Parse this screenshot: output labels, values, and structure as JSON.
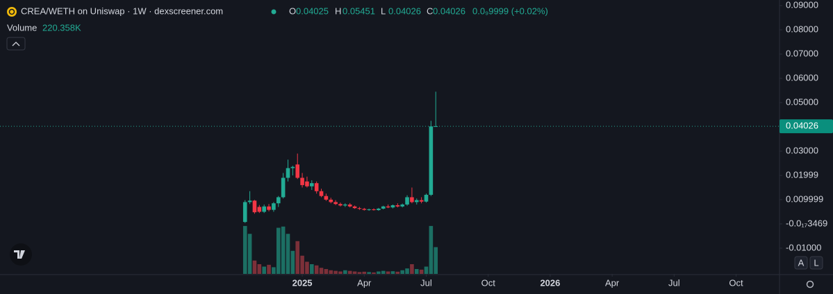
{
  "header": {
    "title": "CREA/WETH on Uniswap · 1W · dexscreener.com",
    "o": "O",
    "h": "H",
    "l": "L",
    "c": "C",
    "change": "0.0₉9999 (+0.02%)",
    "volume": "Volume"
  },
  "buttons": [
    "A",
    "L"
  ],
  "chart_data": {
    "type": "candlestick",
    "categories": [
      null,
      null,
      null,
      null,
      null,
      null,
      null,
      null,
      null,
      null,
      null,
      null,
      null,
      null,
      null,
      null,
      null,
      null,
      null,
      null,
      null,
      null,
      null,
      null,
      null,
      null,
      null,
      null,
      null,
      null,
      null,
      null,
      null,
      null,
      null,
      null,
      null,
      null,
      null,
      null,
      null
    ],
    "open": [
      0.0008,
      0.009,
      0.0096,
      0.007,
      0.005,
      0.0072,
      0.0058,
      0.0085,
      0.011,
      0.019,
      0.023,
      0.0245,
      0.019,
      0.0175,
      0.0155,
      0.0168,
      0.0135,
      0.0115,
      0.01,
      0.009,
      0.0082,
      0.0076,
      0.008,
      0.0072,
      0.0065,
      0.0062,
      0.0058,
      0.006,
      0.0057,
      0.0063,
      0.0072,
      0.0068,
      0.0077,
      0.0072,
      0.008,
      0.011,
      0.009,
      0.0098,
      0.0092,
      0.012,
      0.04025
    ],
    "high": [
      0.0098,
      0.0135,
      0.0099,
      0.0078,
      0.008,
      0.0082,
      0.009,
      0.0115,
      0.021,
      0.0265,
      0.024,
      0.029,
      0.021,
      0.0195,
      0.018,
      0.0175,
      0.0145,
      0.0125,
      0.0108,
      0.0098,
      0.0088,
      0.0085,
      0.0086,
      0.0076,
      0.007,
      0.0066,
      0.0063,
      0.0064,
      0.0066,
      0.0075,
      0.008,
      0.008,
      0.0085,
      0.0084,
      0.0118,
      0.015,
      0.0105,
      0.011,
      0.0125,
      0.0425,
      0.05451
    ],
    "low": [
      0.0004,
      0.0082,
      0.0042,
      0.0045,
      0.0045,
      0.0052,
      0.005,
      0.007,
      0.0105,
      0.0175,
      0.02,
      0.0185,
      0.015,
      0.015,
      0.014,
      0.0125,
      0.011,
      0.0095,
      0.0085,
      0.0078,
      0.0072,
      0.007,
      0.0068,
      0.0062,
      0.0058,
      0.0055,
      0.0054,
      0.0055,
      0.0054,
      0.006,
      0.0065,
      0.0064,
      0.0068,
      0.0068,
      0.0075,
      0.0085,
      0.008,
      0.0085,
      0.0088,
      0.0115,
      0.04026
    ],
    "close": [
      0.009,
      0.0096,
      0.0048,
      0.005,
      0.0072,
      0.0058,
      0.0085,
      0.011,
      0.019,
      0.023,
      0.0235,
      0.019,
      0.016,
      0.0155,
      0.0168,
      0.0135,
      0.0115,
      0.01,
      0.009,
      0.0082,
      0.0076,
      0.008,
      0.0072,
      0.0065,
      0.0062,
      0.0058,
      0.006,
      0.0057,
      0.0063,
      0.0072,
      0.0068,
      0.0077,
      0.0072,
      0.008,
      0.011,
      0.009,
      0.0098,
      0.0092,
      0.012,
      0.0402,
      0.04026
    ],
    "up_color": "#22ab94",
    "down_color": "#f23645",
    "volume": {
      "name": "Volume",
      "up_color": "#1c6f63",
      "down_color": "#7c3039",
      "values": [
        395000,
        330000,
        110000,
        80000,
        60000,
        75000,
        55000,
        380000,
        390000,
        330000,
        190000,
        270000,
        150000,
        100000,
        80000,
        70000,
        50000,
        40000,
        30000,
        25000,
        20000,
        30000,
        25000,
        20000,
        15000,
        18000,
        15000,
        12000,
        20000,
        25000,
        20000,
        22000,
        18000,
        30000,
        45000,
        80000,
        40000,
        35000,
        60000,
        395000,
        220358
      ],
      "value_labels": [
        null,
        null,
        null,
        null,
        null,
        null,
        null,
        null,
        null,
        null,
        null,
        null,
        null,
        null,
        null,
        null,
        null,
        null,
        null,
        null,
        null,
        null,
        null,
        null,
        null,
        null,
        null,
        null,
        null,
        null,
        null,
        null,
        null,
        null,
        null,
        null,
        null,
        null,
        null,
        null,
        "220.358K"
      ],
      "ylim": [
        0,
        400000
      ]
    },
    "ylim": [
      -0.0206,
      0.0923
    ],
    "yticks": [
      {
        "value": 0.09,
        "label": "0.09000"
      },
      {
        "value": 0.08,
        "label": "0.08000"
      },
      {
        "value": 0.07,
        "label": "0.07000"
      },
      {
        "value": 0.06,
        "label": "0.06000"
      },
      {
        "value": 0.05,
        "label": "0.05000"
      },
      {
        "value": 0.03,
        "label": "0.03000"
      },
      0.01999,
      0.009999,
      {
        "value": -3.469e-18,
        "label": "-0.0₁₇3469"
      },
      {
        "value": -0.01,
        "label": "-0.01000"
      }
    ],
    "xlim": [
      -51.4,
      112.1
    ],
    "xticks": [
      {
        "value": 12,
        "label": "2025"
      },
      {
        "value": 25,
        "label": "Apr"
      },
      {
        "value": 38,
        "label": "Jul"
      },
      {
        "value": 51,
        "label": "Oct"
      },
      {
        "value": 64,
        "label": "2026"
      },
      {
        "value": 77,
        "label": "Apr"
      },
      {
        "value": 90,
        "label": "Jul"
      },
      {
        "value": 103,
        "label": "Oct"
      }
    ],
    "price_line": true
  }
}
